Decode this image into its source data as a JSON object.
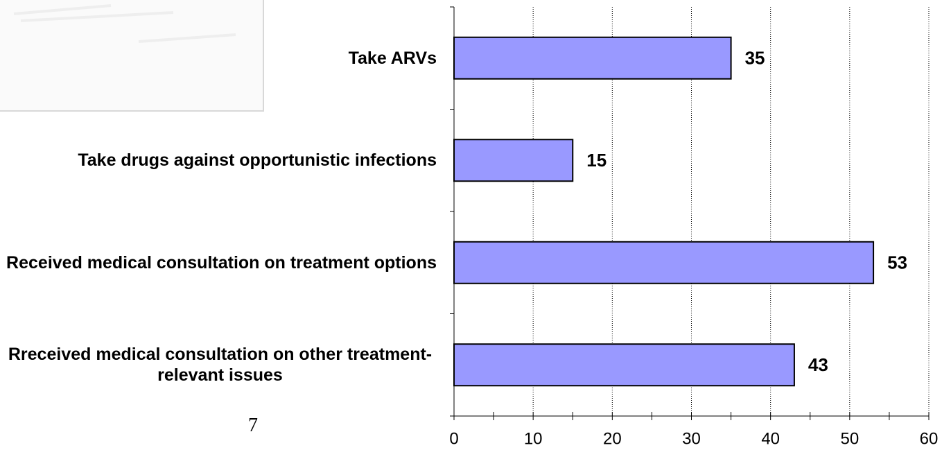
{
  "slide_number": "7",
  "chart_data": {
    "type": "bar",
    "orientation": "horizontal",
    "categories": [
      "Take ARVs",
      "Take drugs against opportunistic infections",
      "Received medical consultation on treatment options",
      "Rreceived medical consultation on other treatment-relevant issues"
    ],
    "values": [
      35,
      15,
      53,
      43
    ],
    "color": "#9999ff",
    "border_color": "#000000",
    "xlim": [
      0,
      60
    ],
    "xticks": [
      0,
      10,
      20,
      30,
      40,
      50,
      60
    ],
    "xminorticks": [
      5,
      15,
      25,
      35,
      45,
      55
    ],
    "grid": true
  }
}
